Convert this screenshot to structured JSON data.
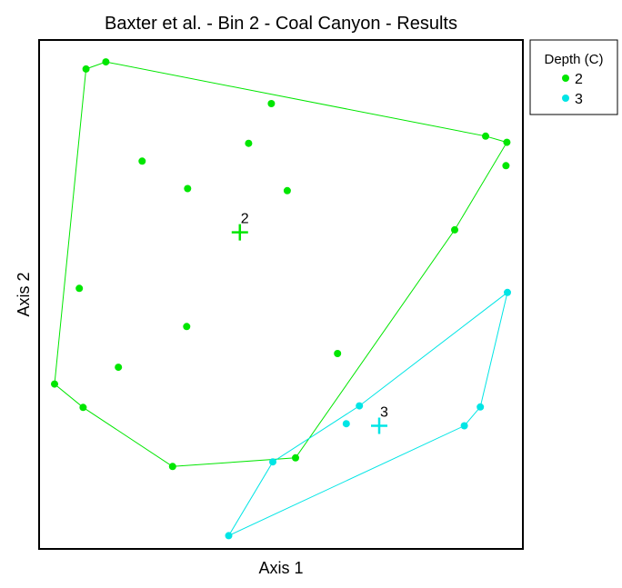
{
  "chart_data": {
    "type": "scatter",
    "title": "Baxter et al. - Bin 2 - Coal Canyon - Results",
    "xlabel": "Axis 1",
    "ylabel": "Axis 2",
    "xlim": [
      0,
      1
    ],
    "ylim": [
      0,
      1
    ],
    "grid": false,
    "legend": {
      "title": "Depth (C)",
      "placement": "outside-top-right"
    },
    "series": [
      {
        "name": "2",
        "color": "#00e600",
        "points": [
          [
            0.097,
            0.943
          ],
          [
            0.138,
            0.957
          ],
          [
            0.48,
            0.875
          ],
          [
            0.433,
            0.797
          ],
          [
            0.213,
            0.762
          ],
          [
            0.307,
            0.708
          ],
          [
            0.513,
            0.704
          ],
          [
            0.923,
            0.811
          ],
          [
            0.967,
            0.799
          ],
          [
            0.965,
            0.753
          ],
          [
            0.859,
            0.627
          ],
          [
            0.083,
            0.512
          ],
          [
            0.305,
            0.437
          ],
          [
            0.164,
            0.357
          ],
          [
            0.617,
            0.384
          ],
          [
            0.032,
            0.324
          ],
          [
            0.091,
            0.278
          ],
          [
            0.276,
            0.162
          ],
          [
            0.53,
            0.179
          ]
        ],
        "hull": [
          [
            0.097,
            0.943
          ],
          [
            0.138,
            0.957
          ],
          [
            0.923,
            0.811
          ],
          [
            0.967,
            0.799
          ],
          [
            0.859,
            0.627
          ],
          [
            0.53,
            0.179
          ],
          [
            0.276,
            0.162
          ],
          [
            0.091,
            0.278
          ],
          [
            0.032,
            0.324
          ]
        ],
        "centroid": [
          0.415,
          0.622
        ],
        "centroid_label": "2"
      },
      {
        "name": "3",
        "color": "#00e5e5",
        "points": [
          [
            0.968,
            0.504
          ],
          [
            0.912,
            0.279
          ],
          [
            0.879,
            0.242
          ],
          [
            0.662,
            0.281
          ],
          [
            0.635,
            0.246
          ],
          [
            0.483,
            0.171
          ],
          [
            0.392,
            0.026
          ]
        ],
        "hull": [
          [
            0.968,
            0.504
          ],
          [
            0.912,
            0.279
          ],
          [
            0.879,
            0.242
          ],
          [
            0.392,
            0.026
          ],
          [
            0.483,
            0.171
          ],
          [
            0.662,
            0.281
          ]
        ],
        "centroid": [
          0.703,
          0.242
        ],
        "centroid_label": "3"
      }
    ]
  }
}
